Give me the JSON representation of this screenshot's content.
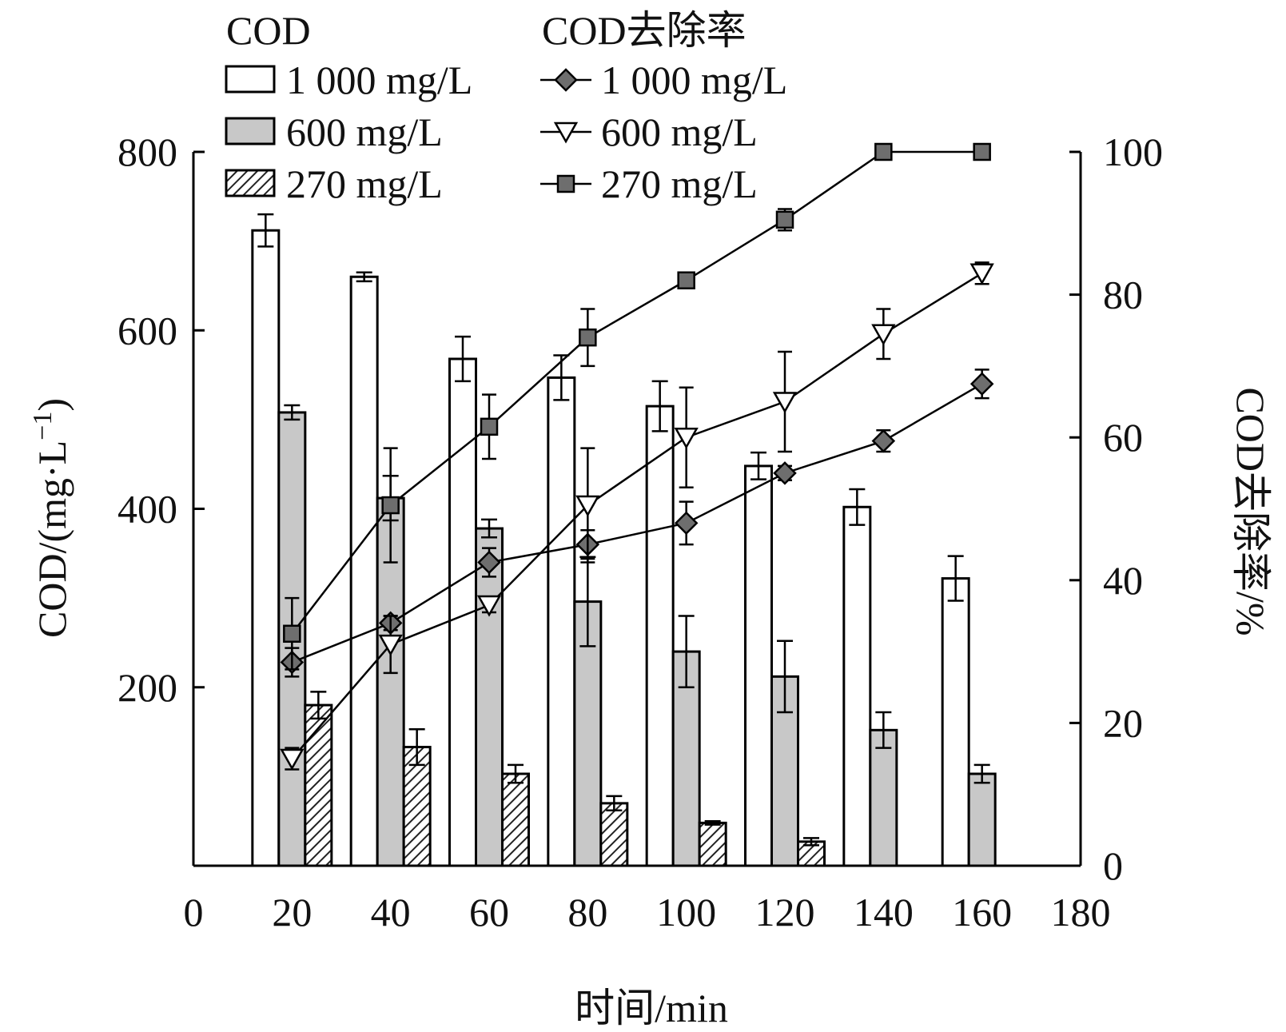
{
  "chart_data": {
    "type": "bar",
    "xlabel": "时间/min",
    "ylabel_left": "COD/(mg·L",
    "ylabel_left_sup": "−1",
    "ylabel_left_close": ")",
    "ylabel_right": "COD去除率/%",
    "xlim": [
      0,
      180
    ],
    "ylim_left": [
      0,
      800
    ],
    "ylim_right": [
      0,
      100
    ],
    "x_ticks": [
      0,
      20,
      40,
      60,
      80,
      100,
      120,
      140,
      160,
      180
    ],
    "y_left_ticks": [
      200,
      400,
      600,
      800
    ],
    "y_right_ticks": [
      0,
      20,
      40,
      60,
      80,
      100
    ],
    "x_categories": [
      20,
      40,
      60,
      80,
      100,
      120,
      140,
      160
    ],
    "legend": {
      "bar_header": "COD",
      "line_header": "COD去除率"
    },
    "bar_series": [
      {
        "name": "1 000 mg/L",
        "fill": "#ffffff",
        "pattern": "none",
        "values": [
          712,
          660,
          568,
          547,
          515,
          448,
          402,
          322
        ],
        "errors": [
          18,
          5,
          25,
          25,
          28,
          15,
          20,
          25
        ]
      },
      {
        "name": "600 mg/L",
        "fill": "#c8c8c8",
        "pattern": "none",
        "values": [
          508,
          412,
          378,
          296,
          240,
          212,
          152,
          103
        ],
        "errors": [
          8,
          25,
          10,
          50,
          40,
          40,
          20,
          10
        ]
      },
      {
        "name": "270 mg/L",
        "fill": "#ffffff",
        "pattern": "hatch",
        "values": [
          180,
          133,
          103,
          70,
          48,
          27,
          null,
          null
        ],
        "errors": [
          15,
          20,
          10,
          8,
          2,
          4,
          null,
          null
        ]
      }
    ],
    "line_series": [
      {
        "name": "1 000 mg/L",
        "marker": "diamond",
        "color": "#6e6e6e",
        "values": [
          28.5,
          34,
          42.5,
          45,
          48,
          55,
          59.5,
          67.5
        ],
        "errors": [
          2,
          1,
          2,
          2,
          3,
          1,
          1.5,
          2
        ]
      },
      {
        "name": "600 mg/L",
        "marker": "triangle-down",
        "color": "#6e6e6e",
        "values": [
          15,
          31,
          36.5,
          50.5,
          60,
          65,
          74.5,
          83
        ],
        "errors": [
          1.5,
          4,
          1,
          8,
          7,
          7,
          3.5,
          1.5
        ]
      },
      {
        "name": "270 mg/L",
        "marker": "square",
        "color": "#6e6e6e",
        "values": [
          32.5,
          50.5,
          61.5,
          74,
          82,
          90.5,
          100,
          100
        ],
        "errors": [
          5,
          8,
          4.5,
          4,
          0,
          1.5,
          0,
          0
        ]
      }
    ]
  }
}
